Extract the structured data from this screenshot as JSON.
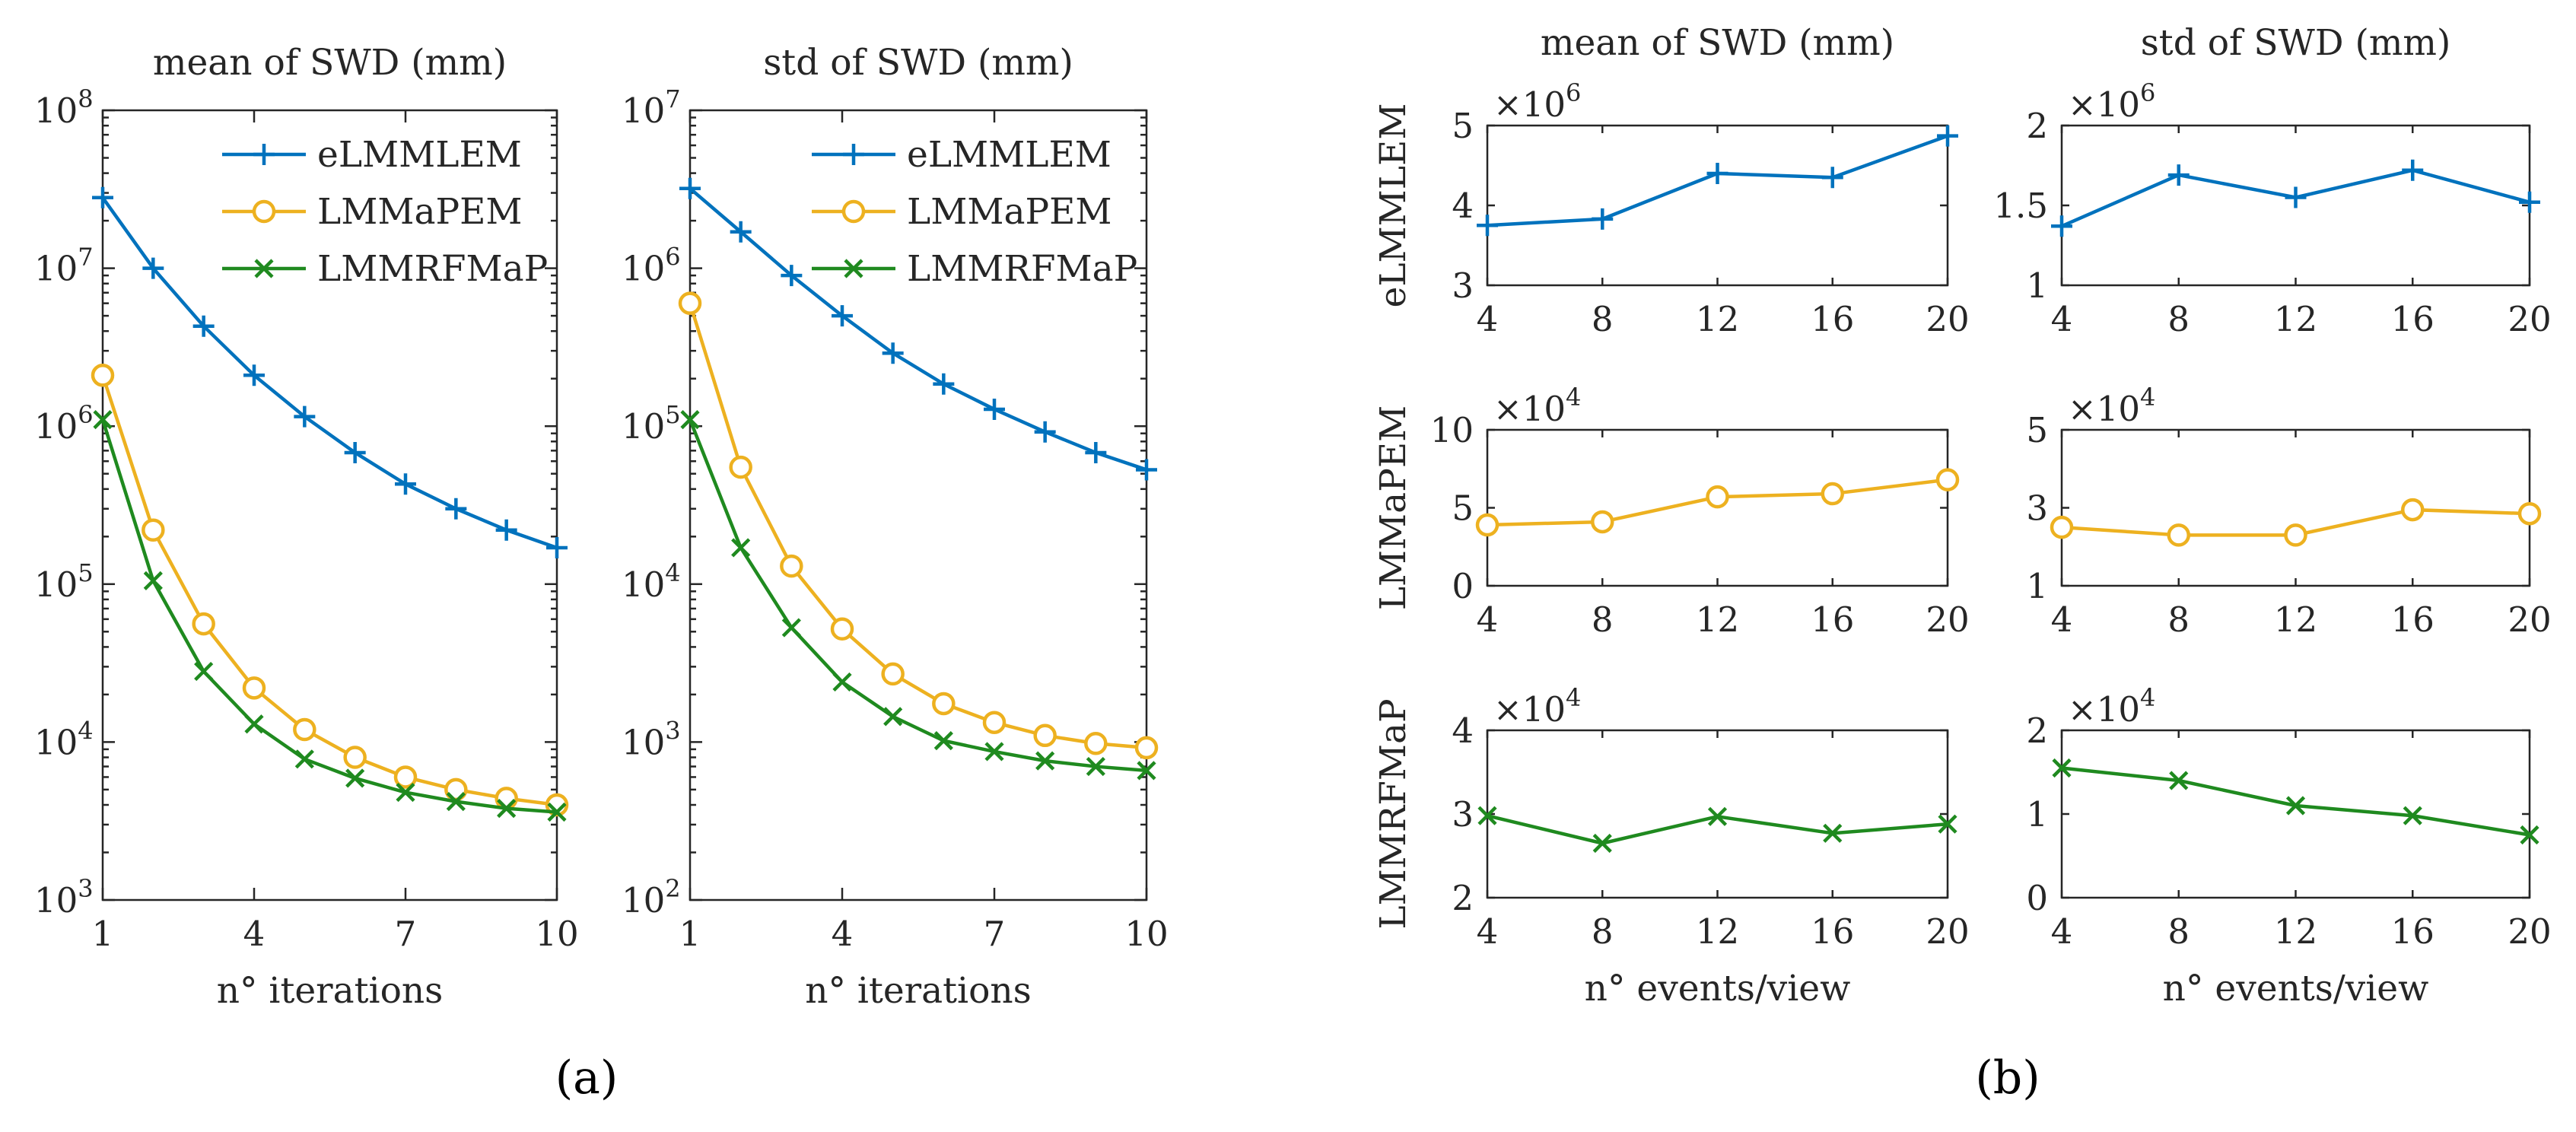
{
  "figure": {
    "labels": [
      "(a)",
      "(b)"
    ]
  },
  "series_styles": {
    "eLMMLEM": {
      "color": "#0072BD",
      "marker": "plus"
    },
    "LMMaPEM": {
      "color": "#EDB120",
      "marker": "circle"
    },
    "LMMRFMaP": {
      "color": "#1F8A1F",
      "marker": "x"
    }
  },
  "chart_data": [
    {
      "id": "a1",
      "type": "line",
      "yscale": "log",
      "title": "mean of SWD (mm)",
      "xlabel": "n° iterations",
      "ylabel": "",
      "xlim": [
        1,
        10
      ],
      "xticks": [
        1,
        4,
        7,
        10
      ],
      "xtick_labels": [
        "1",
        "4",
        "7",
        "10"
      ],
      "ylim": [
        1000,
        100000000
      ],
      "ytick_labels": [
        {
          "base": "10",
          "exp": "3"
        },
        {
          "base": "10",
          "exp": "4"
        },
        {
          "base": "10",
          "exp": "5"
        },
        {
          "base": "10",
          "exp": "6"
        },
        {
          "base": "10",
          "exp": "7"
        },
        {
          "base": "10",
          "exp": "8"
        }
      ],
      "legend": "top-right",
      "x": [
        1,
        2,
        3,
        4,
        5,
        6,
        7,
        8,
        9,
        10
      ],
      "series": [
        {
          "name": "eLMMLEM",
          "values": [
            28000000,
            10000000,
            4300000,
            2100000,
            1150000,
            680000,
            430000,
            300000,
            220000,
            170000
          ]
        },
        {
          "name": "LMMaPEM",
          "values": [
            2100000,
            220000,
            56000,
            22000,
            12000,
            8000,
            6000,
            5000,
            4400,
            4000
          ]
        },
        {
          "name": "LMMRFMaP",
          "values": [
            1100000,
            105000,
            28000,
            13000,
            7800,
            5900,
            4800,
            4200,
            3800,
            3600
          ]
        }
      ]
    },
    {
      "id": "a2",
      "type": "line",
      "yscale": "log",
      "title": "std of SWD (mm)",
      "xlabel": "n° iterations",
      "ylabel": "",
      "xlim": [
        1,
        10
      ],
      "xticks": [
        1,
        4,
        7,
        10
      ],
      "xtick_labels": [
        "1",
        "4",
        "7",
        "10"
      ],
      "ylim": [
        100,
        10000000
      ],
      "ytick_labels": [
        {
          "base": "10",
          "exp": "2"
        },
        {
          "base": "10",
          "exp": "3"
        },
        {
          "base": "10",
          "exp": "4"
        },
        {
          "base": "10",
          "exp": "5"
        },
        {
          "base": "10",
          "exp": "6"
        },
        {
          "base": "10",
          "exp": "7"
        }
      ],
      "legend": "top-right",
      "x": [
        1,
        2,
        3,
        4,
        5,
        6,
        7,
        8,
        9,
        10
      ],
      "series": [
        {
          "name": "eLMMLEM",
          "values": [
            3200000,
            1700000,
            900000,
            500000,
            290000,
            185000,
            128000,
            92000,
            68000,
            53000
          ]
        },
        {
          "name": "LMMaPEM",
          "values": [
            600000,
            55000,
            13000,
            5200,
            2700,
            1750,
            1330,
            1100,
            980,
            920
          ]
        },
        {
          "name": "LMMRFMaP",
          "values": [
            110000,
            17000,
            5300,
            2400,
            1450,
            1020,
            870,
            760,
            700,
            660
          ]
        }
      ]
    },
    {
      "id": "b11",
      "type": "line",
      "title": "mean of SWD (mm)",
      "xlabel": "",
      "ylabel": "eLMMLEM",
      "multiplier": {
        "base": "×10",
        "exp": "6"
      },
      "xlim": [
        4,
        20
      ],
      "xticks": [
        4,
        8,
        12,
        16,
        20
      ],
      "xtick_labels": [
        "4",
        "8",
        "12",
        "16",
        "20"
      ],
      "ylim": [
        3,
        5
      ],
      "yticks": [
        3,
        4,
        5
      ],
      "ytick_labels": [
        "3",
        "4",
        "5"
      ],
      "x": [
        4,
        8,
        12,
        16,
        20
      ],
      "series": [
        {
          "name": "eLMMLEM",
          "values": [
            3.75,
            3.83,
            4.4,
            4.35,
            4.87
          ]
        }
      ]
    },
    {
      "id": "b12",
      "type": "line",
      "title": "std of SWD (mm)",
      "xlabel": "",
      "ylabel": "",
      "multiplier": {
        "base": "×10",
        "exp": "6"
      },
      "xlim": [
        4,
        20
      ],
      "xticks": [
        4,
        8,
        12,
        16,
        20
      ],
      "xtick_labels": [
        "4",
        "8",
        "12",
        "16",
        "20"
      ],
      "ylim": [
        1,
        2
      ],
      "yticks": [
        1,
        1.5,
        2
      ],
      "ytick_labels": [
        "1",
        "1.5",
        "2"
      ],
      "x": [
        4,
        8,
        12,
        16,
        20
      ],
      "series": [
        {
          "name": "eLMMLEM",
          "values": [
            1.37,
            1.69,
            1.55,
            1.72,
            1.52
          ]
        }
      ]
    },
    {
      "id": "b21",
      "type": "line",
      "title": "",
      "xlabel": "",
      "ylabel": "LMMaPEM",
      "multiplier": {
        "base": "×10",
        "exp": "4"
      },
      "xlim": [
        4,
        20
      ],
      "xticks": [
        4,
        8,
        12,
        16,
        20
      ],
      "xtick_labels": [
        "4",
        "8",
        "12",
        "16",
        "20"
      ],
      "ylim": [
        0,
        10
      ],
      "yticks": [
        0,
        5,
        10
      ],
      "ytick_labels": [
        "0",
        "5",
        "10"
      ],
      "x": [
        4,
        8,
        12,
        16,
        20
      ],
      "series": [
        {
          "name": "LMMaPEM",
          "values": [
            3.9,
            4.1,
            5.7,
            5.9,
            6.8
          ]
        }
      ]
    },
    {
      "id": "b22",
      "type": "line",
      "title": "",
      "xlabel": "",
      "ylabel": "",
      "multiplier": {
        "base": "×10",
        "exp": "4"
      },
      "xlim": [
        4,
        20
      ],
      "xticks": [
        4,
        8,
        12,
        16,
        20
      ],
      "xtick_labels": [
        "4",
        "8",
        "12",
        "16",
        "20"
      ],
      "ylim": [
        1,
        5
      ],
      "yticks": [
        1,
        3,
        5
      ],
      "ytick_labels": [
        "1",
        "3",
        "5"
      ],
      "x": [
        4,
        8,
        12,
        16,
        20
      ],
      "series": [
        {
          "name": "LMMaPEM",
          "values": [
            2.5,
            2.3,
            2.3,
            2.95,
            2.85
          ]
        }
      ]
    },
    {
      "id": "b31",
      "type": "line",
      "title": "",
      "xlabel": "n° events/view",
      "ylabel": "LMMRFMaP",
      "multiplier": {
        "base": "×10",
        "exp": "4"
      },
      "xlim": [
        4,
        20
      ],
      "xticks": [
        4,
        8,
        12,
        16,
        20
      ],
      "xtick_labels": [
        "4",
        "8",
        "12",
        "16",
        "20"
      ],
      "ylim": [
        2,
        4
      ],
      "yticks": [
        2,
        3,
        4
      ],
      "ytick_labels": [
        "2",
        "3",
        "4"
      ],
      "x": [
        4,
        8,
        12,
        16,
        20
      ],
      "series": [
        {
          "name": "LMMRFMaP",
          "values": [
            2.98,
            2.65,
            2.97,
            2.77,
            2.88
          ]
        }
      ]
    },
    {
      "id": "b32",
      "type": "line",
      "title": "",
      "xlabel": "n° events/view",
      "ylabel": "",
      "multiplier": {
        "base": "×10",
        "exp": "4"
      },
      "xlim": [
        4,
        20
      ],
      "xticks": [
        4,
        8,
        12,
        16,
        20
      ],
      "xtick_labels": [
        "4",
        "8",
        "12",
        "16",
        "20"
      ],
      "ylim": [
        0,
        2
      ],
      "yticks": [
        0,
        1,
        2
      ],
      "ytick_labels": [
        "0",
        "1",
        "2"
      ],
      "x": [
        4,
        8,
        12,
        16,
        20
      ],
      "series": [
        {
          "name": "LMMRFMaP",
          "values": [
            1.55,
            1.4,
            1.1,
            0.98,
            0.75
          ]
        }
      ]
    }
  ]
}
